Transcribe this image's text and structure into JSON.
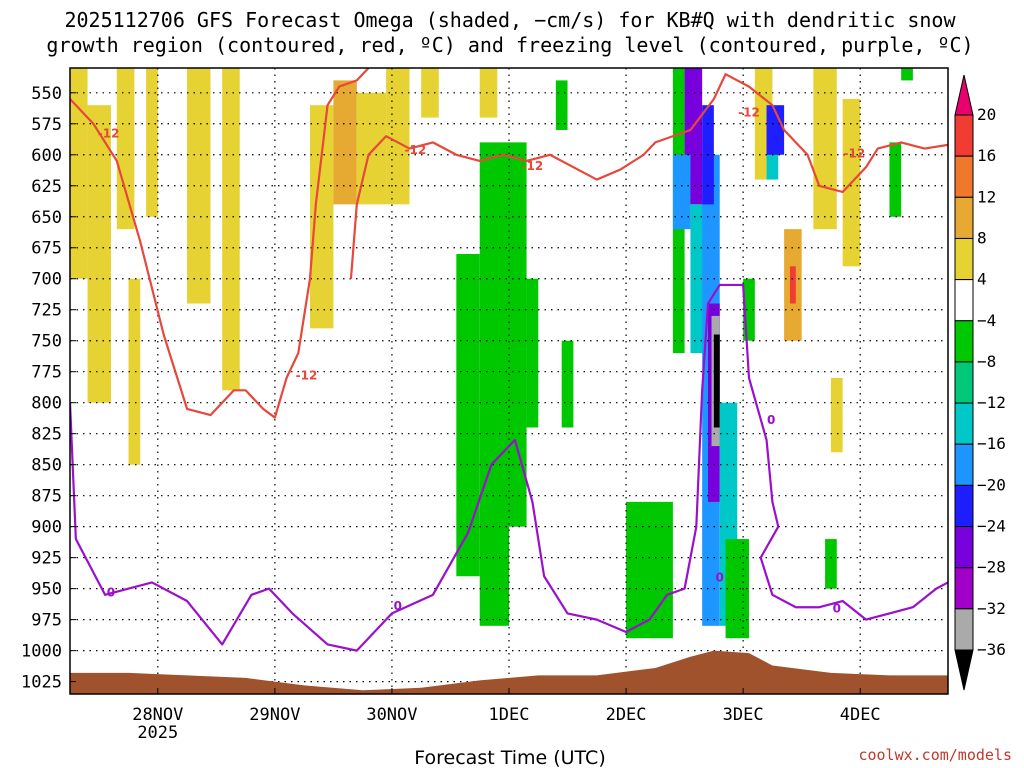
{
  "chart_data": {
    "type": "heatmap",
    "title_lines": [
      "2025112706 GFS Forecast Omega (shaded, −cm/s) for KB#Q with dendritic snow",
      "growth region (contoured, red, ºC) and freezing level (contoured, purple, ºC)"
    ],
    "xlabel": "Forecast Time (UTC)",
    "x_ticks": [
      {
        "label": "28NOV",
        "t": 0.75,
        "sub": "2025"
      },
      {
        "label": "29NOV",
        "t": 1.75,
        "sub": ""
      },
      {
        "label": "30NOV",
        "t": 2.75,
        "sub": ""
      },
      {
        "label": "1DEC",
        "t": 3.75,
        "sub": ""
      },
      {
        "label": "2DEC",
        "t": 4.75,
        "sub": ""
      },
      {
        "label": "3DEC",
        "t": 5.75,
        "sub": ""
      },
      {
        "label": "4DEC",
        "t": 6.75,
        "sub": ""
      }
    ],
    "x_range_days": [
      0,
      7.5
    ],
    "y_axis_pressure_hpa": [
      550,
      575,
      600,
      625,
      650,
      675,
      700,
      725,
      750,
      775,
      800,
      825,
      850,
      875,
      900,
      925,
      950,
      975,
      1000,
      1025
    ],
    "y_range_hpa": [
      530,
      1035
    ],
    "colorbar": {
      "ticks": [
        "20",
        "16",
        "12",
        "8",
        "4",
        "−4",
        "−8",
        "−12",
        "−16",
        "−20",
        "−24",
        "−28",
        "−32",
        "−36"
      ],
      "colors": [
        "#e8006e",
        "#f03c32",
        "#f0782d",
        "#e6aa32",
        "#e6d232",
        "#ffffff",
        "#00c800",
        "#00c878",
        "#00c8c8",
        "#1e96ff",
        "#1e1eff",
        "#7800dc",
        "#a000c8",
        "#aaaaaa",
        "#000000"
      ]
    },
    "contour_labels": {
      "dgz": "-12",
      "freezing": "0"
    },
    "dgz_contour_hpa": [
      [
        0.0,
        555
      ],
      [
        0.2,
        575
      ],
      [
        0.4,
        605
      ],
      [
        0.6,
        670
      ],
      [
        0.8,
        745
      ],
      [
        1.0,
        805
      ],
      [
        1.2,
        810
      ],
      [
        1.4,
        790
      ],
      [
        1.5,
        790
      ],
      [
        1.65,
        805
      ],
      [
        1.75,
        812
      ],
      [
        1.85,
        780
      ],
      [
        1.95,
        760
      ],
      [
        2.05,
        700
      ],
      [
        2.1,
        640
      ],
      [
        2.2,
        560
      ],
      [
        2.3,
        545
      ],
      [
        2.45,
        540
      ],
      [
        2.55,
        530
      ]
    ],
    "dgz_contour_right_hpa": [
      [
        2.4,
        700
      ],
      [
        2.45,
        640
      ],
      [
        2.55,
        600
      ],
      [
        2.7,
        585
      ],
      [
        2.9,
        595
      ],
      [
        3.1,
        590
      ],
      [
        3.3,
        600
      ],
      [
        3.5,
        605
      ],
      [
        3.7,
        600
      ],
      [
        3.9,
        605
      ],
      [
        4.1,
        600
      ],
      [
        4.3,
        610
      ],
      [
        4.5,
        620
      ],
      [
        4.7,
        612
      ],
      [
        4.9,
        600
      ],
      [
        5.0,
        590
      ],
      [
        5.3,
        580
      ],
      [
        5.5,
        555
      ],
      [
        5.6,
        535
      ],
      [
        5.8,
        545
      ],
      [
        6.0,
        560
      ],
      [
        6.1,
        580
      ],
      [
        6.3,
        600
      ],
      [
        6.4,
        625
      ],
      [
        6.6,
        630
      ],
      [
        6.8,
        610
      ],
      [
        6.9,
        595
      ],
      [
        7.1,
        590
      ],
      [
        7.3,
        595
      ],
      [
        7.5,
        592
      ]
    ],
    "freezing_contour_hpa": [
      [
        0.0,
        800
      ],
      [
        0.05,
        910
      ],
      [
        0.3,
        955
      ],
      [
        0.7,
        945
      ],
      [
        1.0,
        960
      ],
      [
        1.3,
        995
      ],
      [
        1.55,
        955
      ],
      [
        1.7,
        950
      ],
      [
        1.9,
        970
      ],
      [
        2.2,
        995
      ],
      [
        2.45,
        1000
      ],
      [
        2.75,
        970
      ],
      [
        3.1,
        955
      ],
      [
        3.4,
        905
      ],
      [
        3.6,
        850
      ],
      [
        3.8,
        830
      ],
      [
        3.95,
        880
      ],
      [
        4.05,
        940
      ],
      [
        4.25,
        970
      ],
      [
        4.5,
        975
      ],
      [
        4.75,
        985
      ],
      [
        4.95,
        975
      ],
      [
        5.1,
        955
      ],
      [
        5.25,
        950
      ],
      [
        5.35,
        900
      ],
      [
        5.4,
        790
      ],
      [
        5.45,
        720
      ],
      [
        5.55,
        705
      ],
      [
        5.75,
        705
      ],
      [
        5.8,
        780
      ],
      [
        5.95,
        830
      ],
      [
        6.0,
        880
      ],
      [
        6.05,
        900
      ],
      [
        5.9,
        925
      ],
      [
        6.0,
        955
      ],
      [
        6.2,
        965
      ],
      [
        6.4,
        965
      ],
      [
        6.6,
        960
      ],
      [
        6.8,
        975
      ],
      [
        7.0,
        970
      ],
      [
        7.2,
        965
      ],
      [
        7.4,
        950
      ],
      [
        7.5,
        945
      ]
    ],
    "terrain_top_hpa": [
      [
        0.0,
        1018
      ],
      [
        0.5,
        1018
      ],
      [
        1.0,
        1020
      ],
      [
        1.5,
        1022
      ],
      [
        2.0,
        1028
      ],
      [
        2.5,
        1032
      ],
      [
        3.0,
        1030
      ],
      [
        3.5,
        1024
      ],
      [
        4.0,
        1020
      ],
      [
        4.5,
        1020
      ],
      [
        5.0,
        1014
      ],
      [
        5.3,
        1005
      ],
      [
        5.5,
        1000
      ],
      [
        5.8,
        1002
      ],
      [
        6.0,
        1012
      ],
      [
        6.5,
        1018
      ],
      [
        7.0,
        1020
      ],
      [
        7.5,
        1020
      ]
    ],
    "terrain_color": "#a0522d",
    "dgz_color": "#e8473b",
    "freezing_color": "#9b10cc",
    "shaded_regions": [
      {
        "t0": 0.0,
        "t1": 0.15,
        "p0": 530,
        "p1": 700,
        "c": "#e6d232"
      },
      {
        "t0": 0.15,
        "t1": 0.35,
        "p0": 560,
        "p1": 800,
        "c": "#e6d232"
      },
      {
        "t0": 0.4,
        "t1": 0.55,
        "p0": 530,
        "p1": 660,
        "c": "#e6d232"
      },
      {
        "t0": 0.65,
        "t1": 0.75,
        "p0": 530,
        "p1": 650,
        "c": "#e6d232"
      },
      {
        "t0": 0.5,
        "t1": 0.6,
        "p0": 700,
        "p1": 850,
        "c": "#e6d232"
      },
      {
        "t0": 1.0,
        "t1": 1.2,
        "p0": 530,
        "p1": 720,
        "c": "#e6d232"
      },
      {
        "t0": 1.3,
        "t1": 1.45,
        "p0": 530,
        "p1": 790,
        "c": "#e6d232"
      },
      {
        "t0": 2.05,
        "t1": 2.25,
        "p0": 560,
        "p1": 740,
        "c": "#e6d232"
      },
      {
        "t0": 2.25,
        "t1": 2.45,
        "p0": 540,
        "p1": 640,
        "c": "#e6aa32"
      },
      {
        "t0": 2.45,
        "t1": 2.7,
        "p0": 550,
        "p1": 640,
        "c": "#e6d232"
      },
      {
        "t0": 2.7,
        "t1": 2.9,
        "p0": 530,
        "p1": 640,
        "c": "#e6d232"
      },
      {
        "t0": 3.0,
        "t1": 3.15,
        "p0": 530,
        "p1": 570,
        "c": "#e6d232"
      },
      {
        "t0": 3.5,
        "t1": 3.65,
        "p0": 530,
        "p1": 570,
        "c": "#e6d232"
      },
      {
        "t0": 3.3,
        "t1": 3.5,
        "p0": 680,
        "p1": 940,
        "c": "#00c800"
      },
      {
        "t0": 3.5,
        "t1": 3.75,
        "p0": 590,
        "p1": 980,
        "c": "#00c800"
      },
      {
        "t0": 3.75,
        "t1": 3.9,
        "p0": 590,
        "p1": 900,
        "c": "#00c800"
      },
      {
        "t0": 3.9,
        "t1": 4.0,
        "p0": 700,
        "p1": 820,
        "c": "#00c800"
      },
      {
        "t0": 4.15,
        "t1": 4.25,
        "p0": 540,
        "p1": 580,
        "c": "#00c800"
      },
      {
        "t0": 4.2,
        "t1": 4.3,
        "p0": 750,
        "p1": 820,
        "c": "#00c800"
      },
      {
        "t0": 4.75,
        "t1": 5.15,
        "p0": 880,
        "p1": 990,
        "c": "#00c800"
      },
      {
        "t0": 5.15,
        "t1": 5.25,
        "p0": 530,
        "p1": 760,
        "c": "#00c800"
      },
      {
        "t0": 5.25,
        "t1": 5.4,
        "p0": 530,
        "p1": 640,
        "c": "#7800dc"
      },
      {
        "t0": 5.15,
        "t1": 5.3,
        "p0": 600,
        "p1": 660,
        "c": "#1e96ff"
      },
      {
        "t0": 5.3,
        "t1": 5.45,
        "p0": 640,
        "p1": 760,
        "c": "#00c8c8"
      },
      {
        "t0": 5.4,
        "t1": 5.55,
        "p0": 600,
        "p1": 980,
        "c": "#1e96ff"
      },
      {
        "t0": 5.4,
        "t1": 5.5,
        "p0": 560,
        "p1": 640,
        "c": "#1e1eff"
      },
      {
        "t0": 5.45,
        "t1": 5.55,
        "p0": 720,
        "p1": 880,
        "c": "#7800dc"
      },
      {
        "t0": 5.48,
        "t1": 5.55,
        "p0": 730,
        "p1": 835,
        "c": "#aaaaaa"
      },
      {
        "t0": 5.5,
        "t1": 5.55,
        "p0": 745,
        "p1": 820,
        "c": "#000000"
      },
      {
        "t0": 5.55,
        "t1": 5.7,
        "p0": 800,
        "p1": 980,
        "c": "#00c8c8"
      },
      {
        "t0": 5.6,
        "t1": 5.8,
        "p0": 910,
        "p1": 990,
        "c": "#00c800"
      },
      {
        "t0": 5.75,
        "t1": 5.85,
        "p0": 700,
        "p1": 750,
        "c": "#00c800"
      },
      {
        "t0": 5.85,
        "t1": 6.0,
        "p0": 530,
        "p1": 620,
        "c": "#e6d232"
      },
      {
        "t0": 5.95,
        "t1": 6.05,
        "p0": 580,
        "p1": 620,
        "c": "#00c8c8"
      },
      {
        "t0": 5.95,
        "t1": 6.1,
        "p0": 560,
        "p1": 600,
        "c": "#1e1eff"
      },
      {
        "t0": 6.1,
        "t1": 6.25,
        "p0": 660,
        "p1": 750,
        "c": "#e6aa32"
      },
      {
        "t0": 6.15,
        "t1": 6.2,
        "p0": 690,
        "p1": 720,
        "c": "#f03c32"
      },
      {
        "t0": 6.35,
        "t1": 6.55,
        "p0": 530,
        "p1": 660,
        "c": "#e6d232"
      },
      {
        "t0": 6.6,
        "t1": 6.75,
        "p0": 555,
        "p1": 620,
        "c": "#e6d232"
      },
      {
        "t0": 6.6,
        "t1": 6.75,
        "p0": 620,
        "p1": 690,
        "c": "#e6d232"
      },
      {
        "t0": 6.5,
        "t1": 6.6,
        "p0": 780,
        "p1": 840,
        "c": "#e6d232"
      },
      {
        "t0": 6.45,
        "t1": 6.55,
        "p0": 910,
        "p1": 950,
        "c": "#00c800"
      },
      {
        "t0": 7.0,
        "t1": 7.1,
        "p0": 590,
        "p1": 650,
        "c": "#00c800"
      },
      {
        "t0": 7.1,
        "t1": 7.2,
        "p0": 530,
        "p1": 540,
        "c": "#00c800"
      }
    ]
  },
  "credit": "coolwx.com/models"
}
